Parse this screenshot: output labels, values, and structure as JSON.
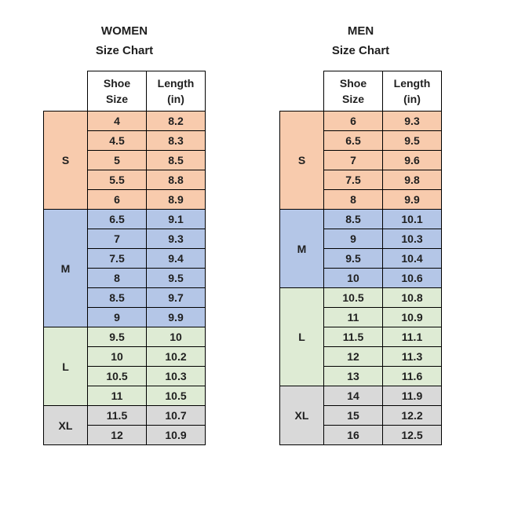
{
  "page": {
    "background": "#ffffff"
  },
  "colors": {
    "size_S": "#f8cbad",
    "size_M": "#b4c6e7",
    "size_L": "#deebd4",
    "size_XL": "#d9d9d9",
    "header_bg": "#ffffff",
    "border": "#000000",
    "text": "#1f1f1f"
  },
  "chart_data": [
    {
      "type": "table",
      "title": "WOMEN",
      "subtitle": "Size Chart",
      "columns": [
        "Shoe Size",
        "Length (in)"
      ],
      "header_lines": [
        [
          "Shoe",
          "Size"
        ],
        [
          "Length",
          "(in)"
        ]
      ],
      "groups": [
        {
          "size": "S",
          "color_key": "size_S",
          "rows": [
            [
              "4",
              "8.2"
            ],
            [
              "4.5",
              "8.3"
            ],
            [
              "5",
              "8.5"
            ],
            [
              "5.5",
              "8.8"
            ],
            [
              "6",
              "8.9"
            ]
          ]
        },
        {
          "size": "M",
          "color_key": "size_M",
          "rows": [
            [
              "6.5",
              "9.1"
            ],
            [
              "7",
              "9.3"
            ],
            [
              "7.5",
              "9.4"
            ],
            [
              "8",
              "9.5"
            ],
            [
              "8.5",
              "9.7"
            ],
            [
              "9",
              "9.9"
            ]
          ]
        },
        {
          "size": "L",
          "color_key": "size_L",
          "rows": [
            [
              "9.5",
              "10"
            ],
            [
              "10",
              "10.2"
            ],
            [
              "10.5",
              "10.3"
            ],
            [
              "11",
              "10.5"
            ]
          ]
        },
        {
          "size": "XL",
          "color_key": "size_XL",
          "rows": [
            [
              "11.5",
              "10.7"
            ],
            [
              "12",
              "10.9"
            ]
          ]
        }
      ]
    },
    {
      "type": "table",
      "title": "MEN",
      "subtitle": "Size Chart",
      "columns": [
        "Shoe Size",
        "Length (in)"
      ],
      "header_lines": [
        [
          "Shoe",
          "Size"
        ],
        [
          "Length",
          "(in)"
        ]
      ],
      "groups": [
        {
          "size": "S",
          "color_key": "size_S",
          "rows": [
            [
              "6",
              "9.3"
            ],
            [
              "6.5",
              "9.5"
            ],
            [
              "7",
              "9.6"
            ],
            [
              "7.5",
              "9.8"
            ],
            [
              "8",
              "9.9"
            ]
          ]
        },
        {
          "size": "M",
          "color_key": "size_M",
          "rows": [
            [
              "8.5",
              "10.1"
            ],
            [
              "9",
              "10.3"
            ],
            [
              "9.5",
              "10.4"
            ],
            [
              "10",
              "10.6"
            ]
          ]
        },
        {
          "size": "L",
          "color_key": "size_L",
          "rows": [
            [
              "10.5",
              "10.8"
            ],
            [
              "11",
              "10.9"
            ],
            [
              "11.5",
              "11.1"
            ],
            [
              "12",
              "11.3"
            ],
            [
              "13",
              "11.6"
            ]
          ]
        },
        {
          "size": "XL",
          "color_key": "size_XL",
          "rows": [
            [
              "14",
              "11.9"
            ],
            [
              "15",
              "12.2"
            ],
            [
              "16",
              "12.5"
            ]
          ]
        }
      ]
    }
  ]
}
